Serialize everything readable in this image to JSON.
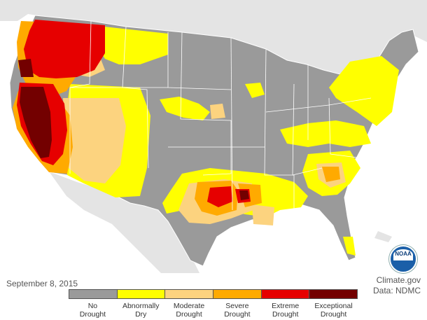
{
  "date_text": "September 8, 2015",
  "credit": {
    "site": "Climate.gov",
    "data_source": "Data: NDMC"
  },
  "logo_text": "NOAA",
  "legend": [
    {
      "line1": "No",
      "line2": "Drought",
      "color": "#9a9a9a"
    },
    {
      "line1": "Abnormally",
      "line2": "Dry",
      "color": "#ffff00"
    },
    {
      "line1": "Moderate",
      "line2": "Drought",
      "color": "#fcd37f"
    },
    {
      "line1": "Severe",
      "line2": "Drought",
      "color": "#ffaa00"
    },
    {
      "line1": "Extreme",
      "line2": "Drought",
      "color": "#e60000"
    },
    {
      "line1": "Exceptional",
      "line2": "Drought",
      "color": "#730000"
    }
  ],
  "colors": {
    "ocean": "#ffffff",
    "neighbor_land": "#e4e4e4",
    "borders": "#ffffff"
  }
}
